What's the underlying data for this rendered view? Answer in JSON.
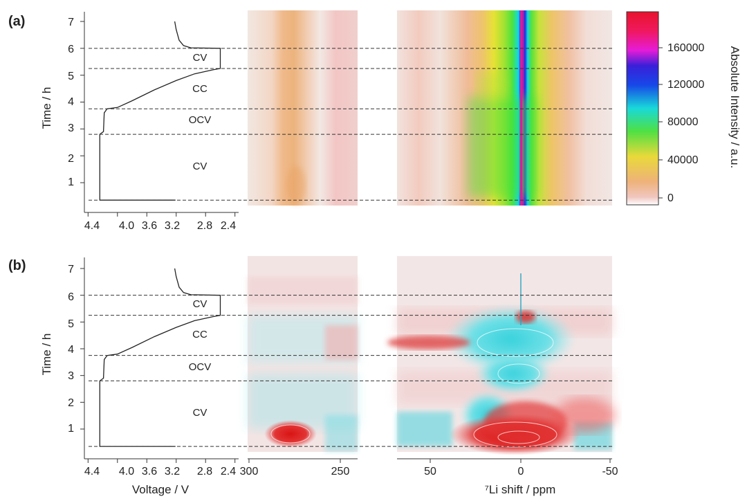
{
  "panel_labels": [
    "(a)",
    "(b)"
  ],
  "axes": {
    "time_label": "Time / h",
    "time_ticks": [
      "1",
      "2",
      "3",
      "4",
      "5",
      "6",
      "7"
    ],
    "voltage_label": "Voltage / V",
    "voltage_ticks": [
      "4.4",
      "4.0",
      "3.6",
      "3.2",
      "2.8",
      "2.4"
    ],
    "shift_label": "⁷Li shift / ppm",
    "shift_ticks_left": [
      "300",
      "250"
    ],
    "shift_ticks_right": [
      "50",
      "0",
      "-50"
    ],
    "colorbar_label": "Absolute Intensity / a.u.",
    "colorbar_ticks": [
      "0",
      "40000",
      "80000",
      "120000",
      "160000"
    ]
  },
  "segments": [
    {
      "label": "CV",
      "time_start": 0.35,
      "time_end": 2.8
    },
    {
      "label": "OCV",
      "time_start": 2.8,
      "time_end": 3.75
    },
    {
      "label": "CC",
      "time_start": 3.75,
      "time_end": 5.25
    },
    {
      "label": "CV",
      "time_start": 5.25,
      "time_end": 6.0
    }
  ],
  "chart_data": [
    {
      "type": "line",
      "panel": "a-left",
      "xlabel": "Voltage / V",
      "ylabel": "Time / h",
      "xlim": [
        4.45,
        2.35
      ],
      "ylim": [
        0,
        7.3
      ],
      "series": [
        {
          "points": [
            [
              3.21,
              0.35
            ],
            [
              4.24,
              0.35
            ],
            [
              4.24,
              2.8
            ],
            [
              4.19,
              2.9
            ],
            [
              4.18,
              3.6
            ],
            [
              4.14,
              3.75
            ],
            [
              4.0,
              3.8
            ],
            [
              3.8,
              4.05
            ],
            [
              3.5,
              4.45
            ],
            [
              3.2,
              4.8
            ],
            [
              2.95,
              5.05
            ],
            [
              2.7,
              5.2
            ],
            [
              2.6,
              5.25
            ],
            [
              2.6,
              6.0
            ],
            [
              3.0,
              6.02
            ],
            [
              3.1,
              6.1
            ],
            [
              3.16,
              6.3
            ],
            [
              3.2,
              6.7
            ],
            [
              3.22,
              7.0
            ]
          ]
        }
      ]
    },
    {
      "type": "heatmap",
      "panel": "a-middle",
      "xlabel": "⁷Li shift / ppm",
      "xlim": [
        300,
        235
      ],
      "ylim": [
        0.3,
        7.3
      ],
      "features": [
        {
          "shift_ppm": 270,
          "time_range": [
            0.35,
            7.3
          ],
          "level": "low"
        },
        {
          "shift_ppm": 243,
          "time_range": [
            0.35,
            7.3
          ],
          "level": "very low"
        }
      ]
    },
    {
      "type": "heatmap",
      "panel": "a-right",
      "xlabel": "⁷Li shift / ppm",
      "xlim": [
        70,
        -50
      ],
      "ylim": [
        0.3,
        7.3
      ],
      "colorbar_range": [
        0,
        190000
      ],
      "features": [
        {
          "shift_ppm": 0,
          "time_range": [
            0.35,
            7.3
          ],
          "level": "max"
        },
        {
          "shift_ppm": -1,
          "time_range": [
            0.35,
            7.3
          ],
          "level": "high"
        }
      ]
    },
    {
      "type": "line",
      "panel": "b-left",
      "xlabel": "Voltage / V",
      "ylabel": "Time / h",
      "xlim": [
        4.45,
        2.35
      ],
      "ylim": [
        0,
        7.3
      ],
      "series": [
        {
          "points": [
            [
              3.21,
              0.35
            ],
            [
              4.24,
              0.35
            ],
            [
              4.24,
              2.8
            ],
            [
              4.19,
              2.9
            ],
            [
              4.18,
              3.6
            ],
            [
              4.14,
              3.75
            ],
            [
              4.0,
              3.8
            ],
            [
              3.8,
              4.05
            ],
            [
              3.5,
              4.45
            ],
            [
              3.2,
              4.8
            ],
            [
              2.95,
              5.05
            ],
            [
              2.7,
              5.2
            ],
            [
              2.6,
              5.25
            ],
            [
              2.6,
              6.0
            ],
            [
              3.0,
              6.02
            ],
            [
              3.1,
              6.1
            ],
            [
              3.16,
              6.3
            ],
            [
              3.2,
              6.7
            ],
            [
              3.22,
              7.0
            ]
          ]
        }
      ]
    },
    {
      "type": "heatmap",
      "panel": "b-middle",
      "xlabel": "⁷Li shift / ppm",
      "xlim": [
        300,
        235
      ],
      "ylim": [
        0.3,
        7.3
      ],
      "features": [
        {
          "shift_ppm": 275,
          "time": 0.85,
          "sign": "positive"
        }
      ]
    },
    {
      "type": "heatmap",
      "panel": "b-right",
      "xlabel": "⁷Li shift / ppm",
      "xlim": [
        70,
        -50
      ],
      "ylim": [
        0.3,
        7.3
      ],
      "features": [
        {
          "shift_ppm": 0,
          "time": 0.7,
          "sign": "positive"
        },
        {
          "shift_ppm": 0,
          "time": 4.1,
          "sign": "negative"
        },
        {
          "shift_ppm": 0,
          "time": 3.1,
          "sign": "negative"
        },
        {
          "shift_ppm": 28,
          "time": 3.9,
          "sign": "positive"
        },
        {
          "shift_ppm": -3,
          "time": 5.3,
          "sign": "positive"
        }
      ]
    }
  ]
}
